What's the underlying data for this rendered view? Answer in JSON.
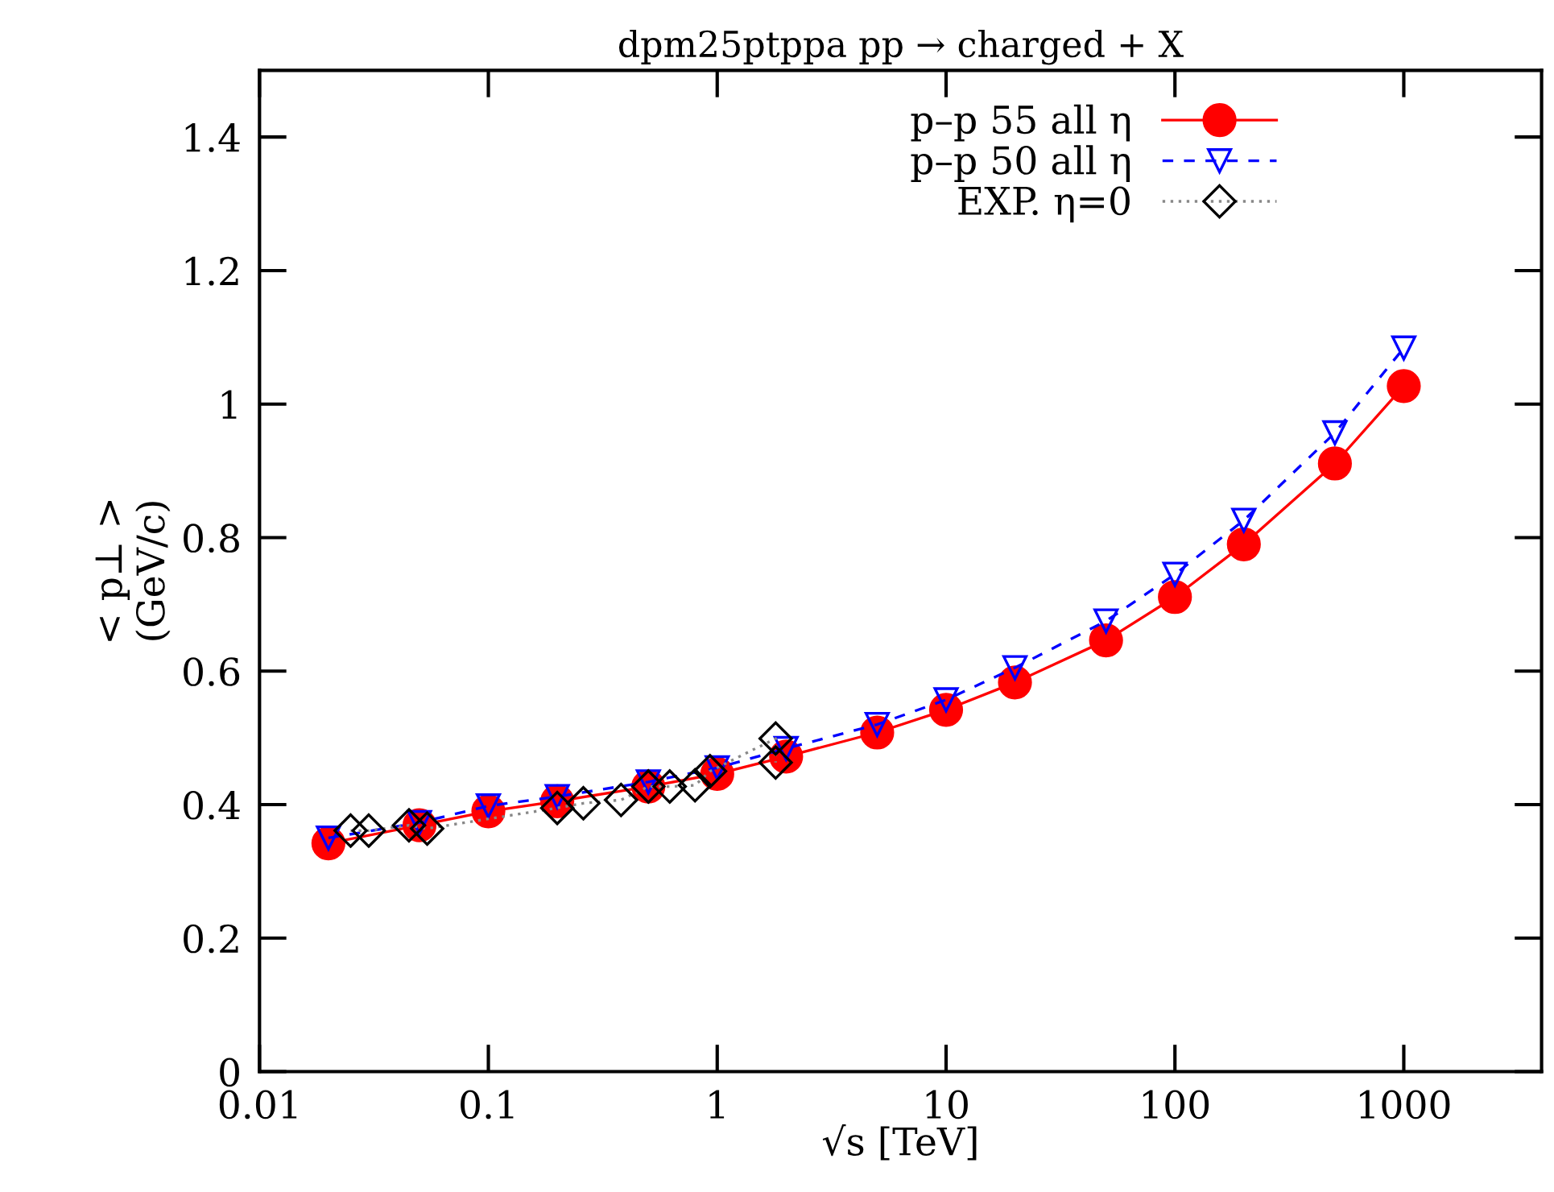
{
  "chart_data": {
    "type": "line",
    "title": "dpm25ptppa pp → charged + X",
    "xlabel": "√s [TeV]",
    "ylabel": "< p⊥ >\n(GeV/c)",
    "log": "x",
    "xlim": [
      0.01,
      4000
    ],
    "xticks": [
      0.01,
      0.1,
      1,
      10,
      100,
      1000
    ],
    "ylim": [
      0,
      1.5
    ],
    "yticks": [
      0,
      0.2,
      0.4,
      0.6,
      0.8,
      1,
      1.2,
      1.4
    ],
    "legend": "top right",
    "grid": false,
    "series": [
      {
        "name": "p–p 55 all η",
        "color": "#ff0000",
        "marker": "circle",
        "line_style": "solid",
        "x": [
          0.02,
          0.05,
          0.1,
          0.2,
          0.5,
          1,
          2,
          5,
          10,
          20,
          50,
          100,
          200,
          500,
          1000
        ],
        "values": [
          0.342,
          0.369,
          0.39,
          0.405,
          0.427,
          0.446,
          0.472,
          0.508,
          0.542,
          0.583,
          0.646,
          0.711,
          0.79,
          0.911,
          1.027
        ]
      },
      {
        "name": "p–p 50 all η",
        "color": "#0000ff",
        "marker": "triangle",
        "line_style": "dashed",
        "x": [
          0.02,
          0.05,
          0.1,
          0.2,
          0.5,
          1,
          2,
          5,
          10,
          20,
          50,
          100,
          200,
          500,
          1000
        ],
        "values": [
          0.35,
          0.373,
          0.398,
          0.412,
          0.434,
          0.455,
          0.484,
          0.52,
          0.557,
          0.605,
          0.675,
          0.745,
          0.826,
          0.957,
          1.084
        ]
      },
      {
        "name": "EXP. η=0",
        "color": "#000000",
        "marker": "diamond",
        "line_style": "dotted",
        "x": [
          0.025,
          0.03,
          0.045,
          0.054,
          0.2,
          0.26,
          0.38,
          0.5,
          0.62,
          0.8,
          0.93,
          1.8,
          1.8
        ],
        "values": [
          0.361,
          0.361,
          0.369,
          0.364,
          0.395,
          0.402,
          0.407,
          0.427,
          0.427,
          0.429,
          0.45,
          0.499,
          0.463
        ]
      }
    ]
  }
}
